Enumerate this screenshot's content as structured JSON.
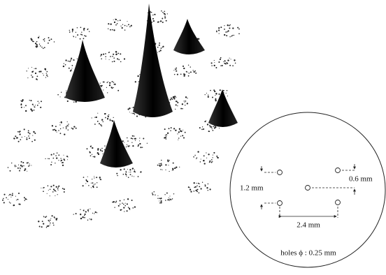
{
  "inset": {
    "labels": {
      "vertical_pitch": "1.2 mm",
      "offset": "0.6 mm",
      "horizontal_pitch": "2.4 mm",
      "hole_diameter": "holes ϕ : 0.25 mm"
    }
  }
}
